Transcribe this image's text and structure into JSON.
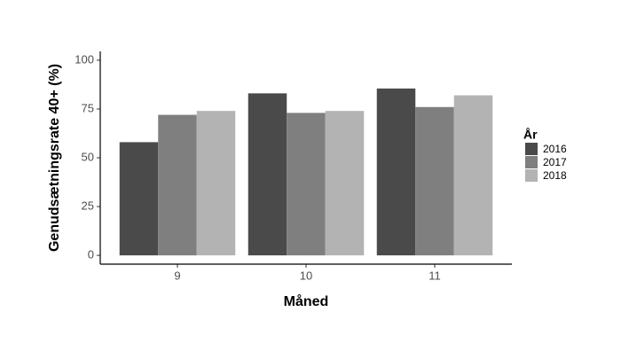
{
  "chart_data": {
    "type": "bar",
    "x_label": "Måned",
    "y_label": "Genudsætningsrate 40+ (%)",
    "categories": [
      "9",
      "10",
      "11"
    ],
    "legend_title": "År",
    "series": [
      {
        "name": "2016",
        "color": "#4a4a4a",
        "values": [
          58,
          83,
          85.5
        ]
      },
      {
        "name": "2017",
        "color": "#7f7f7f",
        "values": [
          72,
          73,
          76
        ]
      },
      {
        "name": "2018",
        "color": "#b3b3b3",
        "values": [
          74,
          74,
          82
        ]
      }
    ],
    "ylim": [
      -4.5,
      104.5
    ],
    "yticks": [
      0,
      25,
      50,
      75,
      100
    ],
    "legend_position": "right"
  }
}
